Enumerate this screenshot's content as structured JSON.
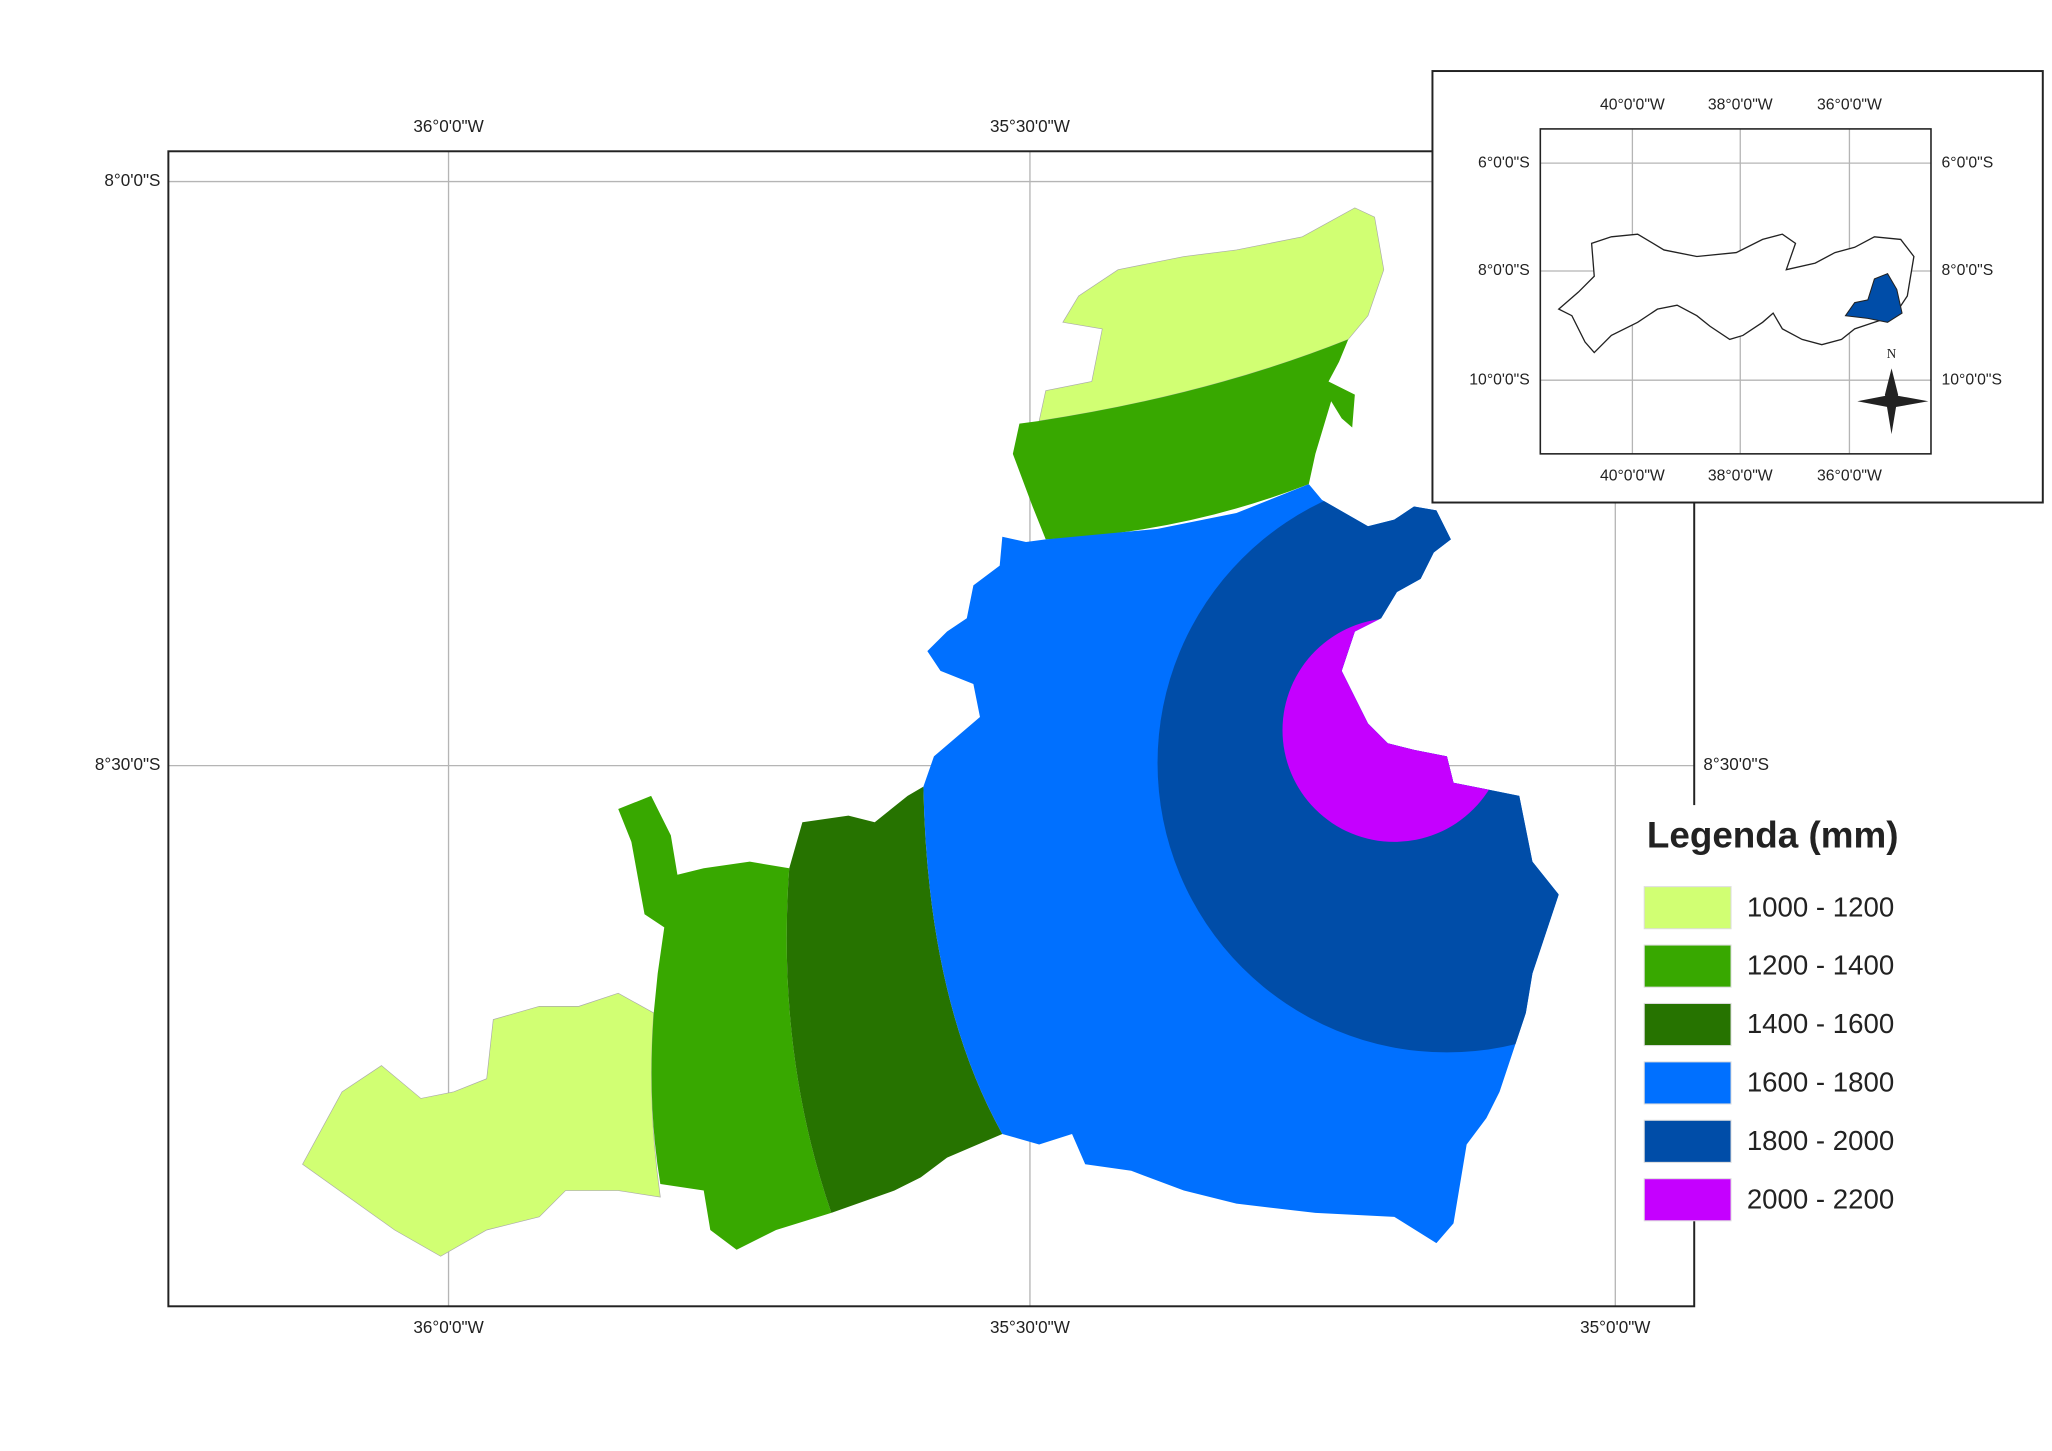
{
  "main_map": {
    "top_labels": [
      "36°0'0\"W",
      "35°30'0\"W"
    ],
    "left_labels": [
      "8°0'0\"S",
      "8°30'0\"S"
    ],
    "right_labels": [
      "8°30'0\"S"
    ],
    "bottom_labels": [
      "36°0'0\"W",
      "35°30'0\"W",
      "35°0'0\"W"
    ]
  },
  "inset": {
    "top_labels": [
      "40°0'0\"W",
      "38°0'0\"W",
      "36°0'0\"W"
    ],
    "bottom_labels": [
      "40°0'0\"W",
      "38°0'0\"W",
      "36°0'0\"W"
    ],
    "left_labels": [
      "6°0'0\"S",
      "8°0'0\"S",
      "10°0'0\"S"
    ],
    "right_labels": [
      "6°0'0\"S",
      "8°0'0\"S",
      "10°0'0\"S"
    ],
    "north": "N"
  },
  "legend": {
    "title": "Legenda (mm)",
    "items": [
      {
        "label": "1000 - 1200",
        "color": "#d1ff73"
      },
      {
        "label": "1200 - 1400",
        "color": "#38a800"
      },
      {
        "label": "1400 - 1600",
        "color": "#267300"
      },
      {
        "label": "1600 - 1800",
        "color": "#0070ff"
      },
      {
        "label": "1800 - 2000",
        "color": "#004da8"
      },
      {
        "label": "2000 - 2200",
        "color": "#c500ff"
      }
    ]
  }
}
